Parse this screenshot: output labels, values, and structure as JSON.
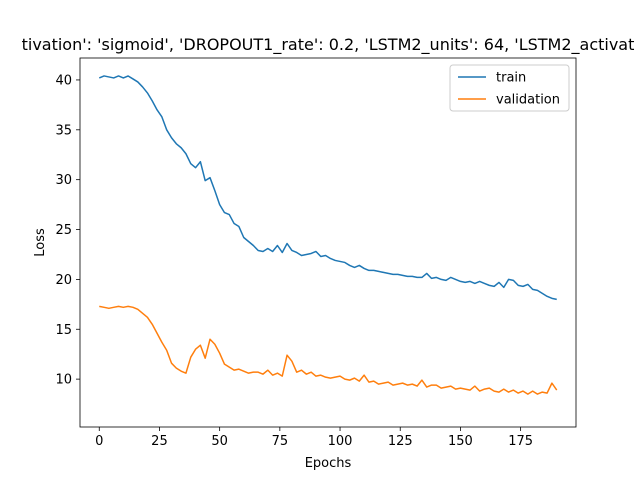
{
  "chart_data": {
    "type": "line",
    "title": "tivation': 'sigmoid', 'DROPOUT1_rate': 0.2, 'LSTM2_units': 64, 'LSTM2_activat",
    "xlabel": "Epochs",
    "ylabel": "Loss",
    "xlim": [
      -8,
      198
    ],
    "ylim": [
      5.2,
      42.2
    ],
    "xticks": [
      0,
      25,
      50,
      75,
      100,
      125,
      150,
      175
    ],
    "yticks": [
      10,
      15,
      20,
      25,
      30,
      35,
      40
    ],
    "grid": false,
    "legend_position": "top-right",
    "series": [
      {
        "name": "train",
        "color": "#1f77b4",
        "x": [
          0,
          2,
          4,
          6,
          8,
          10,
          12,
          14,
          16,
          18,
          20,
          22,
          24,
          26,
          28,
          30,
          32,
          34,
          36,
          38,
          40,
          42,
          44,
          46,
          48,
          50,
          52,
          54,
          56,
          58,
          60,
          62,
          64,
          66,
          68,
          70,
          72,
          74,
          76,
          78,
          80,
          82,
          84,
          86,
          88,
          90,
          92,
          94,
          96,
          98,
          100,
          102,
          104,
          106,
          108,
          110,
          112,
          114,
          116,
          118,
          120,
          122,
          124,
          126,
          128,
          130,
          132,
          134,
          136,
          138,
          140,
          142,
          144,
          146,
          148,
          150,
          152,
          154,
          156,
          158,
          160,
          162,
          164,
          166,
          168,
          170,
          172,
          174,
          176,
          178,
          180,
          182,
          184,
          186,
          188,
          190
        ],
        "values": [
          40.2,
          40.4,
          40.3,
          40.2,
          40.4,
          40.2,
          40.4,
          40.1,
          39.8,
          39.3,
          38.7,
          37.9,
          37.0,
          36.3,
          35.0,
          34.2,
          33.6,
          33.2,
          32.6,
          31.6,
          31.2,
          31.8,
          29.9,
          30.2,
          28.9,
          27.5,
          26.7,
          26.5,
          25.6,
          25.3,
          24.2,
          23.8,
          23.4,
          22.9,
          22.8,
          23.1,
          22.8,
          23.4,
          22.7,
          23.6,
          22.9,
          22.7,
          22.4,
          22.5,
          22.6,
          22.8,
          22.3,
          22.4,
          22.1,
          21.9,
          21.8,
          21.7,
          21.4,
          21.2,
          21.4,
          21.1,
          20.9,
          20.9,
          20.8,
          20.7,
          20.6,
          20.5,
          20.5,
          20.4,
          20.3,
          20.3,
          20.2,
          20.2,
          20.6,
          20.1,
          20.2,
          20.0,
          19.9,
          20.2,
          20.0,
          19.8,
          19.7,
          19.8,
          19.6,
          19.8,
          19.6,
          19.4,
          19.3,
          19.7,
          19.2,
          20.0,
          19.9,
          19.4,
          19.3,
          19.5,
          19.0,
          18.9,
          18.6,
          18.3,
          18.1,
          18.0
        ]
      },
      {
        "name": "validation",
        "color": "#ff7f0e",
        "x": [
          0,
          2,
          4,
          6,
          8,
          10,
          12,
          14,
          16,
          18,
          20,
          22,
          24,
          26,
          28,
          30,
          32,
          34,
          36,
          38,
          40,
          42,
          44,
          46,
          48,
          50,
          52,
          54,
          56,
          58,
          60,
          62,
          64,
          66,
          68,
          70,
          72,
          74,
          76,
          78,
          80,
          82,
          84,
          86,
          88,
          90,
          92,
          94,
          96,
          98,
          100,
          102,
          104,
          106,
          108,
          110,
          112,
          114,
          116,
          118,
          120,
          122,
          124,
          126,
          128,
          130,
          132,
          134,
          136,
          138,
          140,
          142,
          144,
          146,
          148,
          150,
          152,
          154,
          156,
          158,
          160,
          162,
          164,
          166,
          168,
          170,
          172,
          174,
          176,
          178,
          180,
          182,
          184,
          186,
          188,
          190
        ],
        "values": [
          17.3,
          17.2,
          17.1,
          17.2,
          17.3,
          17.2,
          17.3,
          17.2,
          17.0,
          16.6,
          16.2,
          15.5,
          14.6,
          13.7,
          12.9,
          11.6,
          11.1,
          10.8,
          10.6,
          12.2,
          13.0,
          13.4,
          12.1,
          14.0,
          13.5,
          12.6,
          11.5,
          11.2,
          10.9,
          11.0,
          10.8,
          10.6,
          10.7,
          10.7,
          10.5,
          10.9,
          10.4,
          10.6,
          10.3,
          12.4,
          11.8,
          10.7,
          10.9,
          10.5,
          10.7,
          10.3,
          10.4,
          10.2,
          10.1,
          10.2,
          10.3,
          10.0,
          9.9,
          10.1,
          9.8,
          10.4,
          9.7,
          9.8,
          9.5,
          9.6,
          9.7,
          9.4,
          9.5,
          9.6,
          9.4,
          9.5,
          9.3,
          9.9,
          9.2,
          9.4,
          9.4,
          9.1,
          9.2,
          9.3,
          9.0,
          9.1,
          9.0,
          8.9,
          9.3,
          8.8,
          9.0,
          9.1,
          8.8,
          8.7,
          9.0,
          8.7,
          8.9,
          8.6,
          8.8,
          8.5,
          8.8,
          8.5,
          8.7,
          8.6,
          9.6,
          8.9
        ]
      }
    ]
  }
}
